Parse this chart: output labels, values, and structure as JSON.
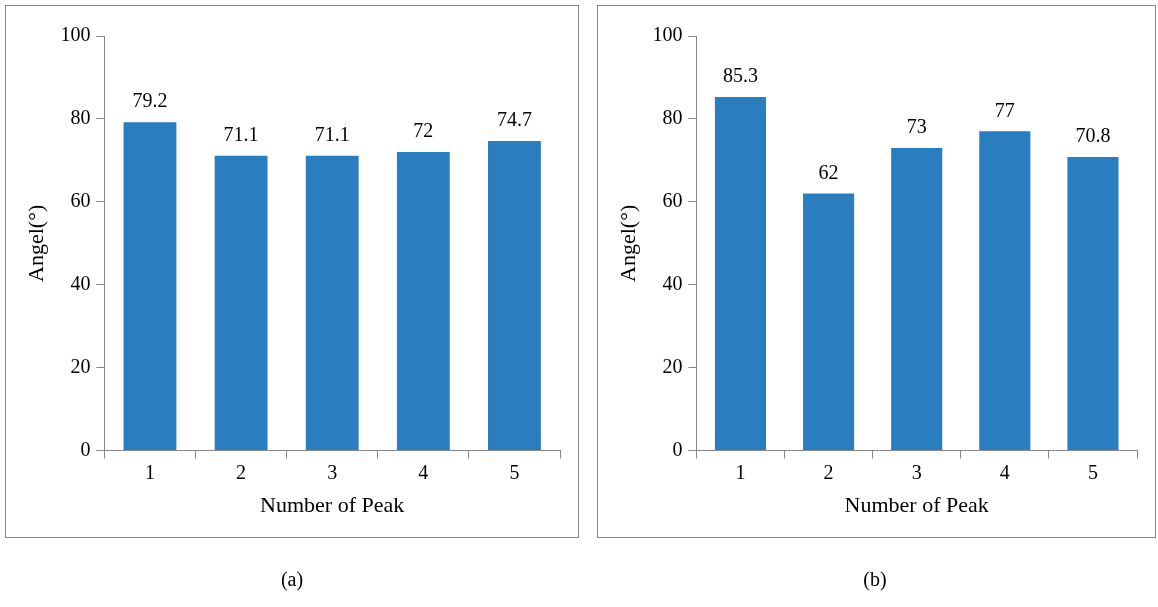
{
  "chart_data": [
    {
      "type": "bar",
      "xlabel": "Number of Peak",
      "ylabel": "Angel(°)",
      "categories": [
        "1",
        "2",
        "3",
        "4",
        "5"
      ],
      "values": [
        79.2,
        71.1,
        71.1,
        72,
        74.7
      ],
      "color": "#2a7ec0",
      "ylim": [
        0,
        100
      ],
      "yticks": [
        0,
        20,
        40,
        60,
        80,
        100
      ],
      "grid": false,
      "legend": false,
      "data_labels": true,
      "annotations": [
        "(a)"
      ]
    },
    {
      "type": "bar",
      "xlabel": "Number of Peak",
      "ylabel": "Angel(°)",
      "categories": [
        "1",
        "2",
        "3",
        "4",
        "5"
      ],
      "values": [
        85.3,
        62,
        73,
        77,
        70.8
      ],
      "color": "#2a7ec0",
      "ylim": [
        0,
        100
      ],
      "yticks": [
        0,
        20,
        40,
        60,
        80,
        100
      ],
      "grid": false,
      "legend": false,
      "data_labels": true,
      "annotations": [
        "(b)"
      ]
    }
  ]
}
